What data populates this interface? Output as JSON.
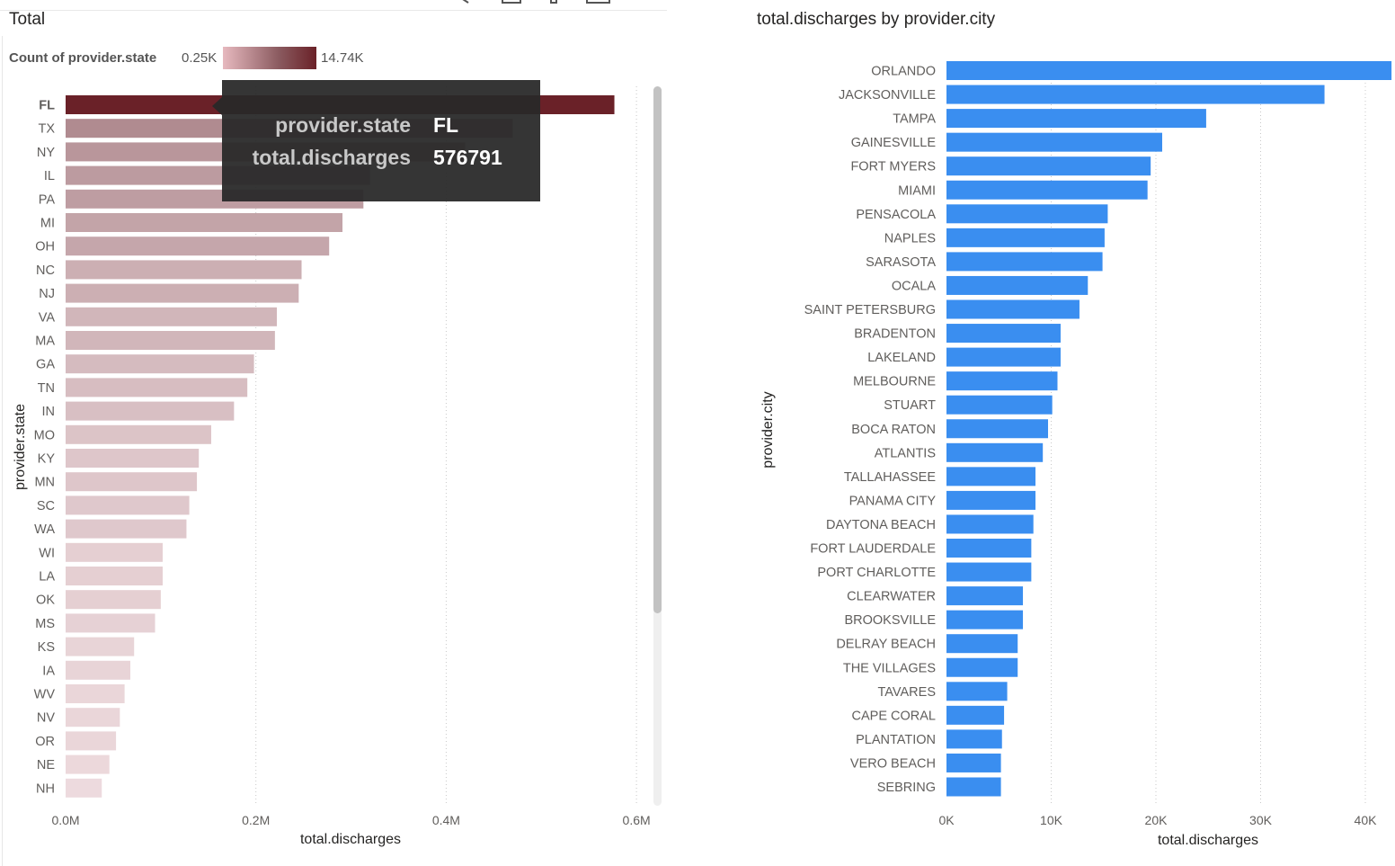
{
  "left_visual": {
    "title": "Total",
    "legend": {
      "label": "Count of provider.state",
      "min_label": "0.25K",
      "max_label": "14.74K"
    },
    "tooltip": {
      "key1": "provider.state",
      "val1": "FL",
      "key2": "total.discharges",
      "val2": "576791"
    }
  },
  "right_visual": {
    "title": "total.discharges by provider.city"
  },
  "colors": {
    "state_dark": "#6a2128",
    "state_light": "#f1dfe2",
    "city_bar": "#3a8ef0"
  },
  "chart_data": [
    {
      "type": "bar",
      "orientation": "horizontal",
      "xlabel": "total.discharges",
      "ylabel": "provider.state",
      "xlim": [
        0,
        0.6
      ],
      "x_unit": "M",
      "xticks": [
        "0.0M",
        "0.2M",
        "0.4M",
        "0.6M"
      ],
      "grid": true,
      "color_scale": {
        "measure": "Count of provider.state",
        "min": "0.25K",
        "max": "14.74K"
      },
      "categories": [
        "FL",
        "TX",
        "NY",
        "IL",
        "PA",
        "MI",
        "OH",
        "NC",
        "NJ",
        "VA",
        "MA",
        "GA",
        "TN",
        "IN",
        "MO",
        "KY",
        "MN",
        "SC",
        "WA",
        "WI",
        "LA",
        "OK",
        "MS",
        "KS",
        "IA",
        "WV",
        "NV",
        "OR",
        "NE",
        "NH"
      ],
      "values": [
        576791,
        470000,
        420000,
        320000,
        313000,
        291000,
        277000,
        248000,
        245000,
        222000,
        220000,
        198000,
        191000,
        177000,
        153000,
        140000,
        138000,
        130000,
        127000,
        102000,
        102000,
        100000,
        94000,
        72000,
        68000,
        62000,
        57000,
        53000,
        46000,
        38000
      ],
      "color_level": [
        1.0,
        0.37,
        0.32,
        0.3,
        0.29,
        0.26,
        0.25,
        0.21,
        0.21,
        0.18,
        0.18,
        0.16,
        0.15,
        0.14,
        0.12,
        0.11,
        0.11,
        0.1,
        0.1,
        0.07,
        0.07,
        0.07,
        0.06,
        0.05,
        0.05,
        0.04,
        0.04,
        0.04,
        0.03,
        0.02
      ],
      "highlighted": "FL"
    },
    {
      "type": "bar",
      "orientation": "horizontal",
      "title": "total.discharges by provider.city",
      "xlabel": "total.discharges",
      "ylabel": "provider.city",
      "xlim": [
        0,
        42500
      ],
      "xticks": [
        "0K",
        "10K",
        "20K",
        "30K",
        "40K"
      ],
      "grid": true,
      "categories": [
        "ORLANDO",
        "JACKSONVILLE",
        "TAMPA",
        "GAINESVILLE",
        "FORT MYERS",
        "MIAMI",
        "PENSACOLA",
        "NAPLES",
        "SARASOTA",
        "OCALA",
        "SAINT PETERSBURG",
        "BRADENTON",
        "LAKELAND",
        "MELBOURNE",
        "STUART",
        "BOCA RATON",
        "ATLANTIS",
        "TALLAHASSEE",
        "PANAMA CITY",
        "DAYTONA BEACH",
        "FORT LAUDERDALE",
        "PORT CHARLOTTE",
        "CLEARWATER",
        "BROOKSVILLE",
        "DELRAY BEACH",
        "THE VILLAGES",
        "TAVARES",
        "CAPE CORAL",
        "PLANTATION",
        "VERO BEACH",
        "SEBRING"
      ],
      "values": [
        42500,
        36100,
        24800,
        20600,
        19500,
        19200,
        15400,
        15100,
        14900,
        13500,
        12700,
        10900,
        10900,
        10600,
        10100,
        9700,
        9200,
        8500,
        8500,
        8300,
        8100,
        8100,
        7300,
        7300,
        6800,
        6800,
        5800,
        5500,
        5300,
        5200,
        5200
      ]
    }
  ]
}
